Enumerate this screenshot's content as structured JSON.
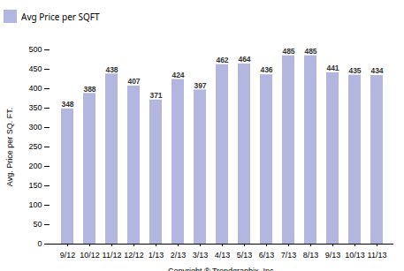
{
  "chart_data": {
    "type": "bar",
    "categories": [
      "9/12",
      "10/12",
      "11/12",
      "12/12",
      "1/13",
      "2/13",
      "3/13",
      "4/13",
      "5/13",
      "6/13",
      "7/13",
      "8/13",
      "9/13",
      "10/13",
      "11/13"
    ],
    "series": [
      {
        "name": "Avg Price per SQFT",
        "color": "#b3b7e0",
        "values": [
          348,
          388,
          438,
          407,
          371,
          424,
          397,
          462,
          464,
          436,
          485,
          485,
          441,
          435,
          434
        ]
      }
    ],
    "ylabel": "Avg. Price per SQ. FT.",
    "xlabel": "Copyright ® Trendgraphix, Inc.",
    "ylim": [
      0,
      500
    ],
    "yticks": [
      0,
      50,
      100,
      150,
      200,
      250,
      300,
      350,
      400,
      450,
      500
    ],
    "grid": false,
    "legend": "top",
    "data_labels": true
  }
}
